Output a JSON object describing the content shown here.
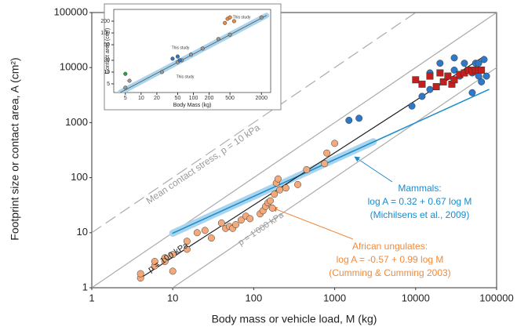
{
  "chart_data": [
    {
      "type": "scatter",
      "x_label": "Body mass or vehicle load, M (kg)",
      "y_label": "Footprint size or contact area, A (cm²)",
      "log_x": true,
      "log_y": true,
      "xlim": [
        1,
        100000
      ],
      "ylim": [
        1,
        100000
      ],
      "xticks": [
        1,
        10,
        100,
        1000,
        10000,
        100000
      ],
      "yticks": [
        1,
        10,
        100,
        1000,
        10000,
        100000
      ],
      "series": [
        {
          "color": "#f4a97a",
          "marker": "circle",
          "x": [
            4,
            4,
            6,
            6,
            8,
            8,
            10,
            10,
            15,
            15,
            20,
            25,
            30,
            40,
            45,
            50,
            55,
            60,
            70,
            80,
            90,
            120,
            130,
            140,
            150,
            160,
            170,
            180,
            190,
            200,
            210,
            250,
            350,
            450,
            750,
            800,
            1000
          ],
          "values": [
            1.5,
            1.8,
            2.5,
            3,
            3.5,
            3,
            2,
            4,
            5,
            7,
            10,
            11,
            8,
            15,
            12,
            13,
            12,
            14,
            17,
            20,
            18,
            22,
            25,
            30,
            35,
            38,
            28,
            50,
            80,
            95,
            60,
            65,
            75,
            140,
            180,
            280,
            420
          ]
        },
        {
          "color": "#2e78c7",
          "marker": "circle",
          "x": [
            1500,
            2000,
            9000,
            12000,
            15000,
            15000,
            20000,
            30000,
            30000,
            35000,
            40000,
            45000,
            50000,
            50000,
            55000,
            60000,
            60000,
            65000,
            70000,
            75000
          ],
          "values": [
            1100,
            1200,
            2000,
            3000,
            8000,
            4000,
            12000,
            9000,
            15000,
            7000,
            12000,
            9000,
            8000,
            3500,
            12000,
            7000,
            12000,
            5500,
            14000,
            7000
          ]
        },
        {
          "color": "#c0201e",
          "marker": "square",
          "x": [
            10000,
            12000,
            15000,
            18000,
            20000,
            22000,
            25000,
            28000,
            30000,
            35000,
            40000,
            45000,
            50000,
            55000,
            60000,
            65000
          ],
          "values": [
            6000,
            5000,
            7000,
            4500,
            8000,
            5500,
            7000,
            5000,
            6000,
            7500,
            8000,
            9000,
            8500,
            9000,
            9000,
            9000
          ]
        }
      ],
      "lines": [
        {
          "color": "#aaaaaa",
          "dash": true,
          "width": 1.2,
          "x": [
            1,
            10000
          ],
          "values": [
            10,
            100000
          ]
        },
        {
          "color": "#aaaaaa",
          "dash": false,
          "width": 1.2,
          "x": [
            1,
            100000
          ],
          "values": [
            1,
            100000
          ]
        },
        {
          "color": "#aaaaaa",
          "dash": false,
          "width": 1.2,
          "x": [
            10,
            100000
          ],
          "values": [
            1,
            10000
          ]
        },
        {
          "color": "#a8d4ee",
          "dash": false,
          "width": 9,
          "x": [
            10,
            3000
          ],
          "values": [
            9.8,
            450
          ]
        },
        {
          "color": "#1a8ccc",
          "dash": false,
          "width": 1.5,
          "x": [
            10,
            80000
          ],
          "values": [
            9.8,
            4000
          ]
        },
        {
          "color": "#222222",
          "dash": false,
          "width": 1.2,
          "x": [
            4,
            70000
          ],
          "values": [
            1.5,
            16000
          ]
        }
      ],
      "annotations": [
        "Mean contact stress, p = 10 kPa",
        "p = 100 kPa",
        "p = 1'000 kPa",
        "Mammals:",
        "log A = 0.32 + 0.67 log M",
        "(Michilsens et al., 2009)",
        "African ungulates:",
        "log A = -0.57 + 0.99 log M",
        "(Cumming & Cumming 2003)"
      ]
    },
    {
      "type": "scatter",
      "x_label": "Body Mass (kg)",
      "y_label": "Contact area (cm²)",
      "log_x": true,
      "log_y": true,
      "xlim": [
        3,
        3000
      ],
      "ylim": [
        3,
        400
      ],
      "xticks": [
        5,
        10,
        20,
        50,
        100,
        200,
        500,
        2000
      ],
      "yticks": [
        5,
        10,
        20,
        50,
        100,
        200
      ],
      "series": [
        {
          "color": "#999999",
          "marker": "circle",
          "x": [
            5,
            6,
            25,
            50,
            60,
            90,
            150,
            300,
            500,
            2000
          ],
          "values": [
            4,
            6,
            10,
            18,
            20,
            28,
            40,
            70,
            90,
            250
          ]
        },
        {
          "color": "#2e78c7",
          "marker": "circle",
          "x": [
            40,
            50,
            55
          ],
          "values": [
            22,
            25,
            20
          ]
        },
        {
          "color": "#2e9e4a",
          "marker": "circle",
          "x": [
            5
          ],
          "values": [
            9
          ]
        },
        {
          "color": "#f08a3c",
          "marker": "circle",
          "x": [
            400,
            450,
            500,
            600
          ],
          "values": [
            180,
            230,
            250,
            200
          ]
        }
      ],
      "lines": [
        {
          "color": "#a8d4ee",
          "dash": false,
          "width": 7,
          "x": [
            4,
            2500
          ],
          "values": [
            3,
            280
          ]
        },
        {
          "color": "#555555",
          "dash": false,
          "width": 0.8,
          "x": [
            4,
            2500
          ],
          "values": [
            3,
            280
          ]
        }
      ],
      "annotations": [
        "This study",
        "This study",
        "This study"
      ]
    }
  ]
}
